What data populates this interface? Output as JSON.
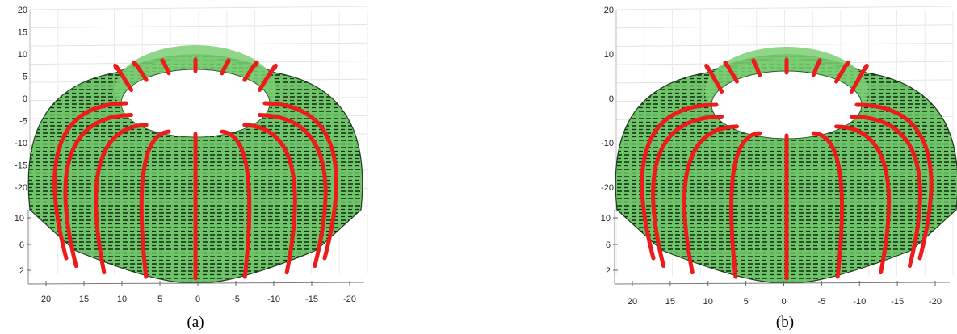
{
  "figure": {
    "panels": [
      {
        "caption": "(a)",
        "chart_data": {
          "type": "surface3d",
          "title": "",
          "z_ticks_upper": [
            "20",
            "15",
            "10",
            "5",
            "0",
            "-5",
            "-10",
            "-15",
            "-20"
          ],
          "z_ticks_lower": [
            "10",
            "6",
            "2"
          ],
          "x_ticks": [
            "20",
            "15",
            "10",
            "5",
            "0",
            "-5",
            "-10",
            "-15",
            "-20"
          ],
          "xlim": [
            22,
            -22
          ],
          "zlim": [
            -22,
            20
          ],
          "grid": true,
          "surface": "torus-like mesh with inner hole, dashed mesh lines",
          "surface_color": "#6fc46a",
          "mesh_color": "#000000",
          "highlight_curves_color": "#ee1b1b",
          "highlight_curve_count": 16
        }
      },
      {
        "caption": "(b)",
        "chart_data": {
          "type": "surface3d",
          "title": "",
          "z_ticks_upper": [
            "20",
            "10",
            "0",
            "-10",
            "-20"
          ],
          "z_ticks_lower": [
            "10",
            "6",
            "2"
          ],
          "x_ticks": [
            "20",
            "15",
            "10",
            "5",
            "0",
            "-5",
            "-10",
            "-15",
            "-20"
          ],
          "xlim": [
            22,
            -22
          ],
          "zlim": [
            -22,
            20
          ],
          "grid": true,
          "surface": "torus-like mesh with inner hole, dashed mesh lines",
          "surface_color": "#6fc46a",
          "mesh_color": "#000000",
          "highlight_curves_color": "#ee1b1b",
          "highlight_curve_count": 16
        }
      }
    ]
  }
}
